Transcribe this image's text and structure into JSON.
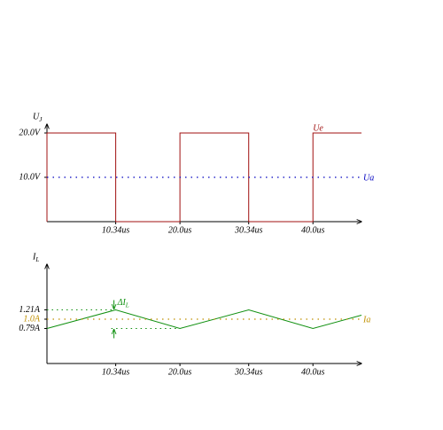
{
  "chart_data": [
    {
      "type": "line",
      "ylabel": "U",
      "ylabel_sub": "J",
      "xlim": [
        0,
        47.3
      ],
      "ylim": [
        0,
        22
      ],
      "xticks": [
        {
          "value": 10.34,
          "label": "10.34us"
        },
        {
          "value": 20,
          "label": "20.0us"
        },
        {
          "value": 30.34,
          "label": "30.34us"
        },
        {
          "value": 40,
          "label": "40.0us"
        }
      ],
      "yticks": [
        {
          "value": 10,
          "label": "10.0V"
        },
        {
          "value": 20,
          "label": "20.0V"
        }
      ],
      "series": [
        {
          "name": "Ue",
          "color": "#a01010",
          "dash": false,
          "label_position": "top",
          "x": [
            0,
            0,
            10.34,
            10.34,
            20,
            20,
            30.34,
            30.34,
            40,
            40,
            47.3
          ],
          "values": [
            0,
            20,
            20,
            0,
            0,
            20,
            20,
            0,
            0,
            20,
            20
          ]
        },
        {
          "name": "Ua",
          "color": "#0000c0",
          "dash": true,
          "label_position": "right",
          "x": [
            0,
            47.3
          ],
          "values": [
            10,
            10
          ]
        }
      ]
    },
    {
      "type": "line",
      "ylabel": "I",
      "ylabel_sub": "L",
      "xlim": [
        0,
        47.3
      ],
      "ylim": [
        0,
        2.24
      ],
      "xticks": [
        {
          "value": 10.34,
          "label": "10.34us"
        },
        {
          "value": 20,
          "label": "20.0us"
        },
        {
          "value": 30.34,
          "label": "30.34us"
        },
        {
          "value": 40,
          "label": "40.0us"
        }
      ],
      "yticks": [
        {
          "value": 1.21,
          "label": "1.21A"
        },
        {
          "value": 1.0,
          "label": "1.0A",
          "color": "#c09000"
        },
        {
          "value": 0.79,
          "label": "0.79A"
        }
      ],
      "annotation": "ΔI",
      "annotation_sub": "L",
      "annotation_color": "#109010",
      "series": [
        {
          "name": null,
          "color": "#109010",
          "dash": false,
          "x": [
            0,
            10.34,
            20,
            30.34,
            40,
            47.3
          ],
          "values": [
            0.79,
            1.21,
            0.79,
            1.21,
            0.79,
            1.09
          ]
        },
        {
          "name": "Ia",
          "color": "#c09000",
          "dash": true,
          "label_position": "right",
          "x": [
            0,
            47.3
          ],
          "values": [
            1.0,
            1.0
          ]
        }
      ]
    }
  ]
}
